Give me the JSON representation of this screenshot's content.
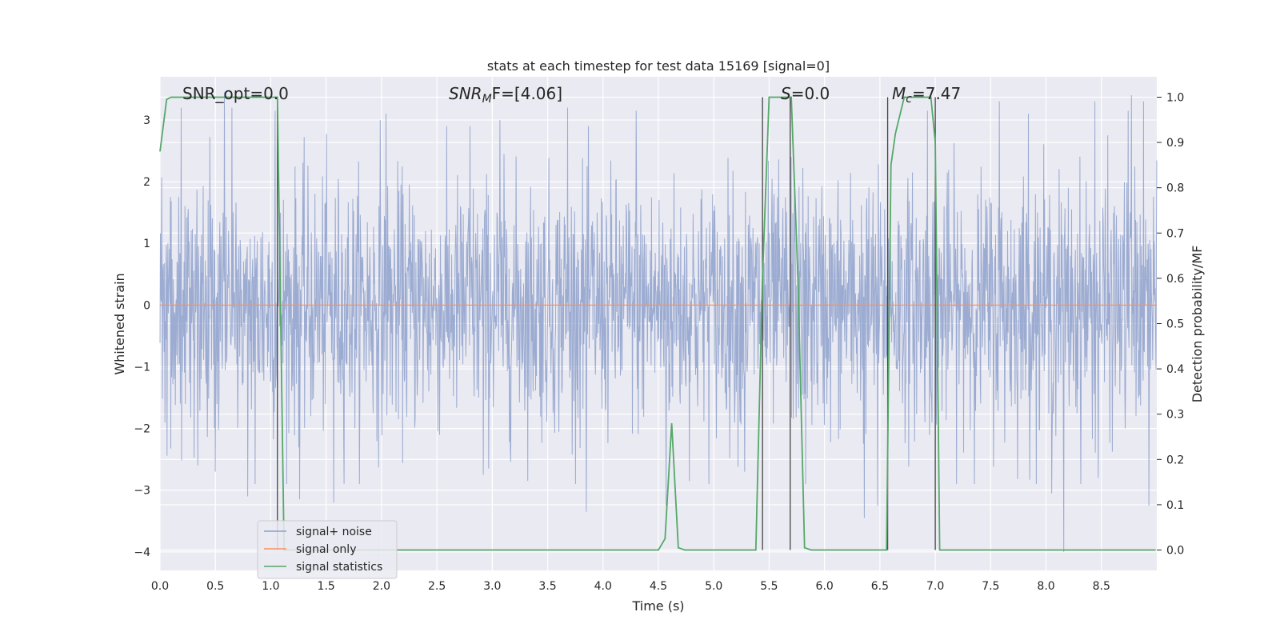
{
  "chart_data": {
    "type": "line",
    "title": "stats at each timestep for test data 15169 [signal=0]",
    "xlabel": "Time (s)",
    "ylabel": "Whitened strain",
    "y2label": "Detection probability/MF",
    "xlim": [
      0,
      9.0
    ],
    "ylim": [
      -4.3,
      3.7
    ],
    "y2lim": [
      -0.045,
      1.045
    ],
    "x_ticks": [
      0.0,
      0.5,
      1.0,
      1.5,
      2.0,
      2.5,
      3.0,
      3.5,
      4.0,
      4.5,
      5.0,
      5.5,
      6.0,
      6.5,
      7.0,
      7.5,
      8.0,
      8.5
    ],
    "x_tick_labels": [
      "0.0",
      "0.5",
      "1.0",
      "1.5",
      "2.0",
      "2.5",
      "3.0",
      "3.5",
      "4.0",
      "4.5",
      "5.0",
      "5.5",
      "6.0",
      "6.5",
      "7.0",
      "7.5",
      "8.0",
      "8.5"
    ],
    "y_ticks": [
      3,
      2,
      1,
      0,
      -1,
      -2,
      -3,
      -4
    ],
    "y_tick_labels": [
      "3",
      "2",
      "1",
      "0",
      "−1",
      "−2",
      "−3",
      "−4"
    ],
    "y2_ticks": [
      1.0,
      0.9,
      0.8,
      0.7,
      0.6,
      0.5,
      0.4,
      0.3,
      0.2,
      0.1,
      0.0
    ],
    "y2_tick_labels": [
      "1.0",
      "0.9",
      "0.8",
      "0.7",
      "0.6",
      "0.5",
      "0.4",
      "0.3",
      "0.2",
      "0.1",
      "0.0"
    ],
    "grid": true,
    "legend_position": "lower-left",
    "annotations": {
      "snr_opt": "SNR_opt=0.0",
      "snr_mf_main": "SNR",
      "snr_mf_sub": "M",
      "snr_mf_rest": "F=[4.06]",
      "s_italic": "S",
      "s_rest": "=0.0",
      "mc_italic": "M",
      "mc_sub": "c",
      "mc_rest": "=7.47"
    },
    "noise_series": {
      "name": "signal+ noise",
      "color": "#8da0cb",
      "x_range": [
        0,
        9.0
      ],
      "sigma": 1.0,
      "peaks": [
        {
          "x": 0.19,
          "y": 3.2
        },
        {
          "x": 0.34,
          "y": -2.6
        },
        {
          "x": 0.5,
          "y": -2.7
        },
        {
          "x": 0.58,
          "y": 3.45
        },
        {
          "x": 0.65,
          "y": 3.2
        },
        {
          "x": 0.79,
          "y": -3.1
        },
        {
          "x": 0.86,
          "y": -2.9
        },
        {
          "x": 1.04,
          "y": 3.15
        },
        {
          "x": 1.26,
          "y": -3.15
        },
        {
          "x": 1.57,
          "y": -3.2
        },
        {
          "x": 1.99,
          "y": 3.0
        },
        {
          "x": 2.04,
          "y": 3.1
        },
        {
          "x": 2.8,
          "y": 2.9
        },
        {
          "x": 2.92,
          "y": -2.75
        },
        {
          "x": 3.07,
          "y": 3.0
        },
        {
          "x": 3.68,
          "y": 3.2
        },
        {
          "x": 3.85,
          "y": -3.35
        },
        {
          "x": 4.3,
          "y": 3.15
        },
        {
          "x": 4.57,
          "y": -3.25
        },
        {
          "x": 5.28,
          "y": -2.7
        },
        {
          "x": 5.7,
          "y": 2.4
        },
        {
          "x": 5.83,
          "y": -2.9
        },
        {
          "x": 6.36,
          "y": -3.45
        },
        {
          "x": 6.48,
          "y": -3.25
        },
        {
          "x": 6.93,
          "y": 3.15
        },
        {
          "x": 7.58,
          "y": 3.3
        },
        {
          "x": 7.84,
          "y": 3.1
        },
        {
          "x": 8.05,
          "y": -3.05
        },
        {
          "x": 8.16,
          "y": -4.0
        },
        {
          "x": 8.44,
          "y": 3.3
        },
        {
          "x": 8.47,
          "y": -2.8
        },
        {
          "x": 8.74,
          "y": 3.15
        },
        {
          "x": 8.77,
          "y": 3.4
        },
        {
          "x": 8.88,
          "y": 3.3
        },
        {
          "x": 8.93,
          "y": -3.25
        }
      ]
    },
    "signal_only": {
      "name": "signal only",
      "color": "#fc8d62",
      "y": 0
    },
    "statistics_series": {
      "name": "signal statistics",
      "color": "#55a868",
      "x": [
        0.0,
        0.06,
        0.1,
        0.5,
        1.0,
        1.06,
        1.12,
        1.18,
        1.24,
        4.5,
        4.56,
        4.62,
        4.68,
        4.74,
        4.8,
        5.38,
        5.44,
        5.5,
        5.7,
        5.76,
        5.82,
        5.88,
        6.56,
        6.6,
        6.64,
        6.72,
        6.96,
        7.0,
        7.04,
        7.08,
        8.99
      ],
      "y": [
        0.88,
        0.995,
        1.0,
        1.0,
        1.0,
        1.0,
        0.0,
        0.0,
        0.0,
        0.0,
        0.025,
        0.28,
        0.005,
        0.0,
        0.0,
        0.0,
        0.6,
        1.0,
        1.0,
        0.6,
        0.005,
        0.0,
        0.0,
        0.85,
        0.92,
        1.0,
        1.0,
        0.9,
        0.0,
        0.0,
        0.0
      ]
    },
    "vertical_markers_x": [
      1.06,
      5.44,
      5.69,
      6.57,
      7.0
    ],
    "legend": [
      {
        "label": "signal+ noise",
        "color": "#8da0cb"
      },
      {
        "label": "signal only",
        "color": "#fc8d62"
      },
      {
        "label": "signal statistics",
        "color": "#55a868"
      }
    ]
  },
  "style": {
    "plot_background": "#eaeaf2",
    "grid_color": "#ffffff",
    "marker_line_color": "#444444"
  }
}
